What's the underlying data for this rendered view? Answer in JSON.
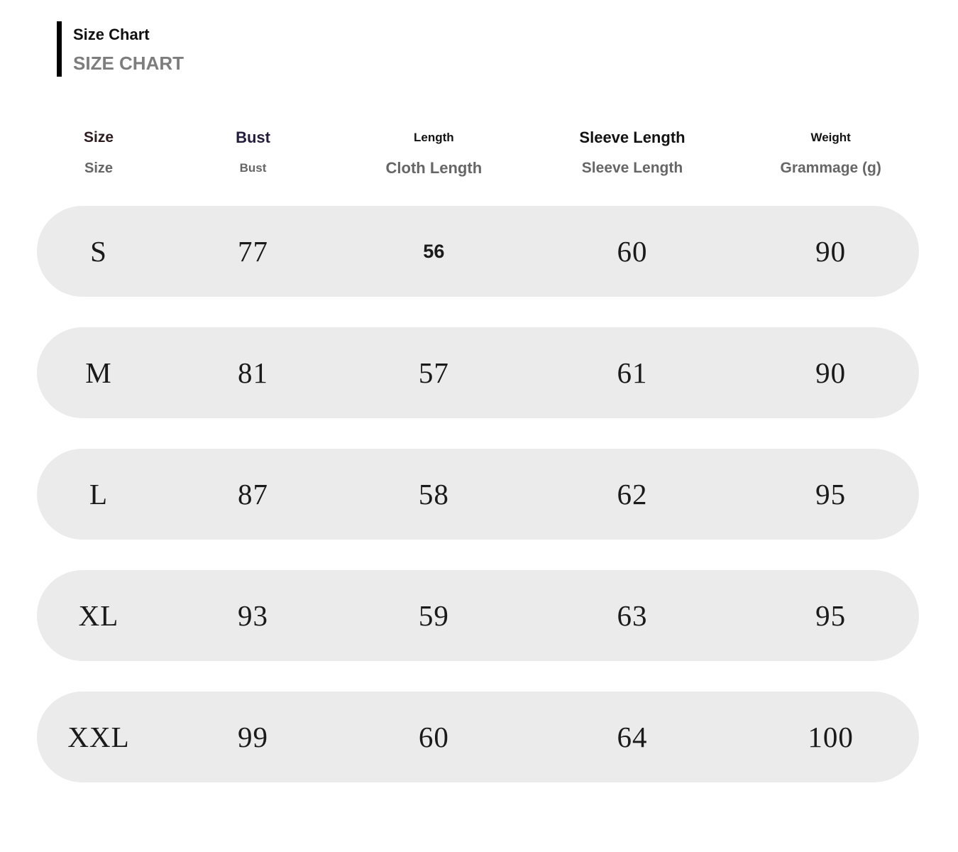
{
  "title": {
    "main": "Size Chart",
    "sub": "SIZE CHART"
  },
  "colors": {
    "accent_bar": "#000000",
    "title_text": "#111111",
    "subtitle_gray": "#7d7d7d",
    "subheader_gray": "#666666",
    "header_size_color": "#2d1b20",
    "header_bust_color": "#241c3a",
    "row_pill_bg": "#ebebeb",
    "data_text": "#1a1a1a"
  },
  "table": {
    "columns": [
      {
        "label": "Size",
        "sublabel": "Size"
      },
      {
        "label": "Bust",
        "sublabel": "Bust"
      },
      {
        "label": "Length",
        "sublabel": "Cloth Length"
      },
      {
        "label": "Sleeve Length",
        "sublabel": "Sleeve Length"
      },
      {
        "label": "Weight",
        "sublabel": "Grammage (g)"
      }
    ],
    "rows": [
      {
        "size": "S",
        "bust": "77",
        "length": "56",
        "sleeve": "60",
        "weight": "90"
      },
      {
        "size": "M",
        "bust": "81",
        "length": "57",
        "sleeve": "61",
        "weight": "90"
      },
      {
        "size": "L",
        "bust": "87",
        "length": "58",
        "sleeve": "62",
        "weight": "95"
      },
      {
        "size": "XL",
        "bust": "93",
        "length": "59",
        "sleeve": "63",
        "weight": "95"
      },
      {
        "size": "XXL",
        "bust": "99",
        "length": "60",
        "sleeve": "64",
        "weight": "100"
      }
    ]
  },
  "chart_data": {
    "type": "table",
    "title": "Size Chart",
    "columns": [
      "Size",
      "Bust",
      "Cloth Length",
      "Sleeve Length",
      "Grammage (g)"
    ],
    "rows": [
      [
        "S",
        77,
        56,
        60,
        90
      ],
      [
        "M",
        81,
        57,
        61,
        90
      ],
      [
        "L",
        87,
        58,
        62,
        95
      ],
      [
        "XL",
        93,
        59,
        63,
        95
      ],
      [
        "XXL",
        99,
        60,
        64,
        100
      ]
    ]
  }
}
